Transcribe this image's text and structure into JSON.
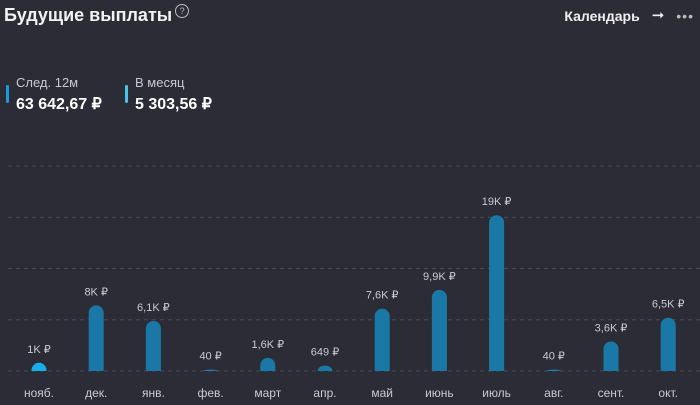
{
  "header": {
    "title": "Будущие выплаты",
    "help_icon": "question-circle-icon",
    "calendar_link": "Календарь",
    "arrow_icon": "arrow-right-icon",
    "more_icon": "more-dots-icon"
  },
  "stats": [
    {
      "label": "След. 12м",
      "value": "63 642,67 ₽",
      "color": "#1a9ad6"
    },
    {
      "label": "В месяц",
      "value": "5 303,56 ₽",
      "color": "#4cc3e6"
    }
  ],
  "colors": {
    "bar": "#1a78a6",
    "current_bar": "#19aee8",
    "grid": "#4a4a58",
    "label": "#c9c9d0"
  },
  "chart_data": {
    "type": "bar",
    "categories": [
      "нояб.",
      "дек.",
      "янв.",
      "фев.",
      "март",
      "апр.",
      "май",
      "июнь",
      "июль",
      "авг.",
      "сент.",
      "окт."
    ],
    "values": [
      1000,
      8000,
      6100,
      40,
      1600,
      649,
      7600,
      9900,
      19000,
      40,
      3600,
      6500
    ],
    "data_labels": [
      "1K ₽",
      "8K ₽",
      "6,1K ₽",
      "40 ₽",
      "1,6K ₽",
      "649 ₽",
      "7,6K ₽",
      "9,9K ₽",
      "19K ₽",
      "40 ₽",
      "3,6K ₽",
      "6,5K ₽"
    ],
    "ylim": [
      0,
      25000
    ],
    "grid": true,
    "highlighted_category": "нояб."
  }
}
